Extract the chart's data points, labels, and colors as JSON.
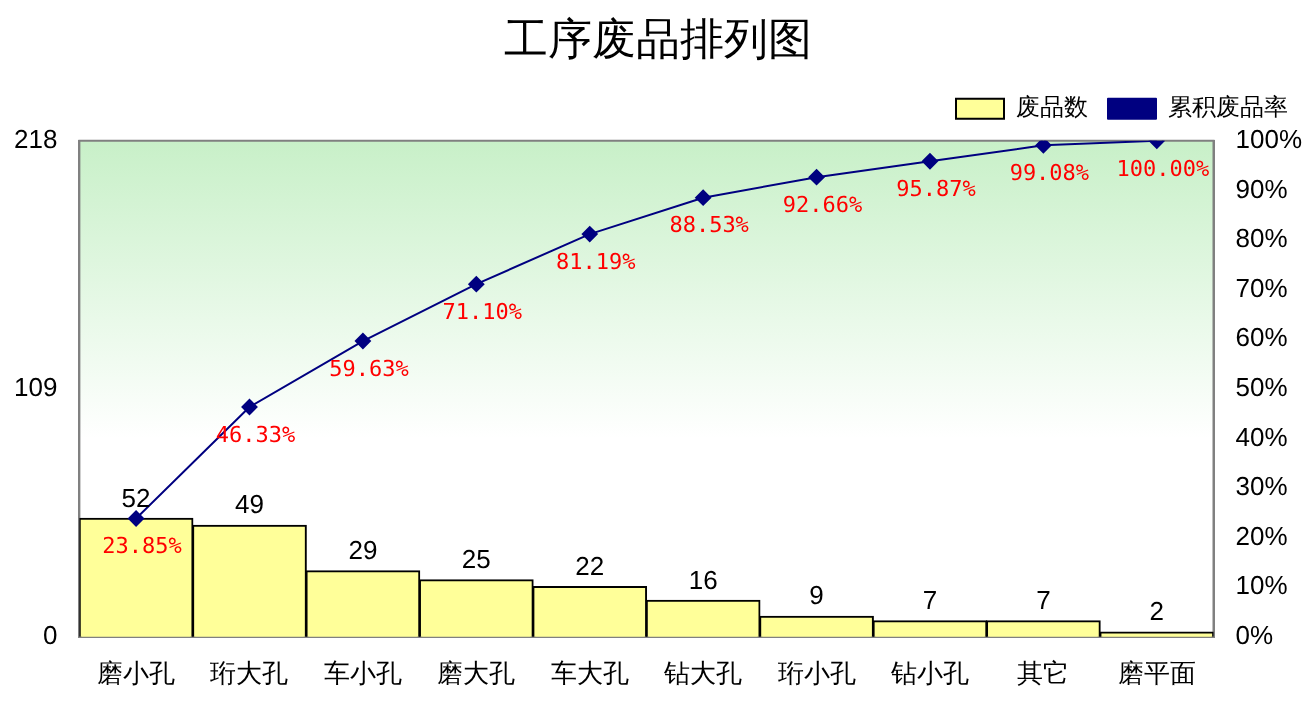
{
  "chart_data": {
    "type": "bar",
    "title": "工序废品排列图",
    "categories": [
      "磨小孔",
      "珩大孔",
      "车小孔",
      "磨大孔",
      "车大孔",
      "钻大孔",
      "珩小孔",
      "钻小孔",
      "其它",
      "磨平面"
    ],
    "series": [
      {
        "name": "废品数",
        "color": "#ffff99",
        "values": [
          52,
          49,
          29,
          25,
          22,
          16,
          9,
          7,
          7,
          2
        ],
        "value_labels": [
          "52",
          "49",
          "29",
          "25",
          "22",
          "16",
          "9",
          "7",
          "7",
          "2"
        ]
      },
      {
        "name": "累积废品率",
        "type": "line",
        "axis": "y2",
        "color": "#000080",
        "marker": "diamond",
        "values": [
          23.85,
          46.33,
          59.63,
          71.1,
          81.19,
          88.53,
          92.66,
          95.87,
          99.08,
          100.0
        ],
        "value_labels": [
          "23.85%",
          "46.33%",
          "59.63%",
          "71.10%",
          "81.19%",
          "88.53%",
          "92.66%",
          "95.87%",
          "99.08%",
          "100.00%"
        ]
      }
    ],
    "ylim": [
      0,
      218
    ],
    "yticks": [
      0,
      109,
      218
    ],
    "y2lim": [
      0,
      100
    ],
    "y2ticks": [
      {
        "value": 0,
        "label": "0%"
      },
      {
        "value": 10,
        "label": "10%"
      },
      {
        "value": 20,
        "label": "20%"
      },
      {
        "value": 30,
        "label": "30%"
      },
      {
        "value": 40,
        "label": "40%"
      },
      {
        "value": 50,
        "label": "50%"
      },
      {
        "value": 60,
        "label": "60%"
      },
      {
        "value": 70,
        "label": "70%"
      },
      {
        "value": 80,
        "label": "80%"
      },
      {
        "value": 90,
        "label": "90%"
      },
      {
        "value": 100,
        "label": "100%"
      }
    ],
    "grid": false,
    "legend": "top right"
  }
}
